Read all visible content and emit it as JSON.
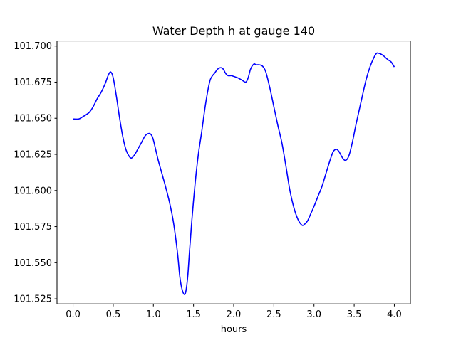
{
  "chart_data": {
    "type": "line",
    "title": "Water Depth h at gauge 140",
    "xlabel": "hours",
    "ylabel": "",
    "xlim": [
      -0.2,
      4.2
    ],
    "ylim": [
      101.5215,
      101.7035
    ],
    "x_ticks": [
      0.0,
      0.5,
      1.0,
      1.5,
      2.0,
      2.5,
      3.0,
      3.5,
      4.0
    ],
    "x_tick_labels": [
      "0.0",
      "0.5",
      "1.0",
      "1.5",
      "2.0",
      "2.5",
      "3.0",
      "3.5",
      "4.0"
    ],
    "y_ticks": [
      101.525,
      101.55,
      101.575,
      101.6,
      101.625,
      101.65,
      101.675,
      101.7
    ],
    "y_tick_labels": [
      "101.525",
      "101.550",
      "101.575",
      "101.600",
      "101.625",
      "101.650",
      "101.675",
      "101.700"
    ],
    "grid": false,
    "series": [
      {
        "color": "#0000ff",
        "x": [
          0.0,
          0.07,
          0.12,
          0.2,
          0.25,
          0.3,
          0.35,
          0.4,
          0.44,
          0.47,
          0.5,
          0.54,
          0.58,
          0.62,
          0.66,
          0.7,
          0.73,
          0.77,
          0.8,
          0.85,
          0.9,
          0.95,
          0.98,
          1.0,
          1.03,
          1.06,
          1.1,
          1.15,
          1.2,
          1.25,
          1.3,
          1.33,
          1.36,
          1.39,
          1.41,
          1.43,
          1.45,
          1.48,
          1.52,
          1.56,
          1.6,
          1.65,
          1.7,
          1.73,
          1.76,
          1.8,
          1.84,
          1.87,
          1.9,
          1.93,
          1.97,
          2.0,
          2.05,
          2.1,
          2.15,
          2.18,
          2.21,
          2.25,
          2.28,
          2.32,
          2.36,
          2.4,
          2.45,
          2.5,
          2.55,
          2.6,
          2.65,
          2.7,
          2.75,
          2.8,
          2.85,
          2.88,
          2.92,
          2.96,
          3.0,
          3.05,
          3.1,
          3.15,
          3.2,
          3.24,
          3.28,
          3.31,
          3.35,
          3.38,
          3.41,
          3.44,
          3.48,
          3.52,
          3.56,
          3.6,
          3.65,
          3.7,
          3.75,
          3.78,
          3.8,
          3.83,
          3.87,
          3.92,
          3.96,
          4.0
        ],
        "y": [
          101.6495,
          101.6495,
          101.651,
          101.654,
          101.658,
          101.6635,
          101.668,
          101.674,
          101.68,
          101.682,
          101.678,
          101.665,
          101.65,
          101.637,
          101.628,
          101.6235,
          101.6225,
          101.625,
          101.628,
          101.633,
          101.638,
          101.6395,
          101.638,
          101.635,
          101.628,
          101.621,
          101.613,
          101.603,
          101.592,
          101.578,
          101.557,
          101.54,
          101.531,
          101.528,
          101.532,
          101.542,
          101.558,
          101.58,
          101.605,
          101.625,
          101.64,
          101.66,
          101.675,
          101.679,
          101.681,
          101.684,
          101.685,
          101.684,
          101.681,
          101.6795,
          101.6795,
          101.679,
          101.678,
          101.6765,
          101.675,
          101.678,
          101.684,
          101.6875,
          101.687,
          101.687,
          101.686,
          101.682,
          101.671,
          101.658,
          101.645,
          101.633,
          101.617,
          101.6,
          101.588,
          101.58,
          101.576,
          101.5765,
          101.579,
          101.584,
          101.589,
          101.596,
          101.603,
          101.612,
          101.621,
          101.627,
          101.6285,
          101.627,
          101.623,
          101.621,
          101.6215,
          101.625,
          101.634,
          101.645,
          101.655,
          101.665,
          101.677,
          101.686,
          101.6925,
          101.695,
          101.695,
          101.6945,
          101.693,
          101.6905,
          101.689,
          101.6855
        ]
      }
    ]
  }
}
